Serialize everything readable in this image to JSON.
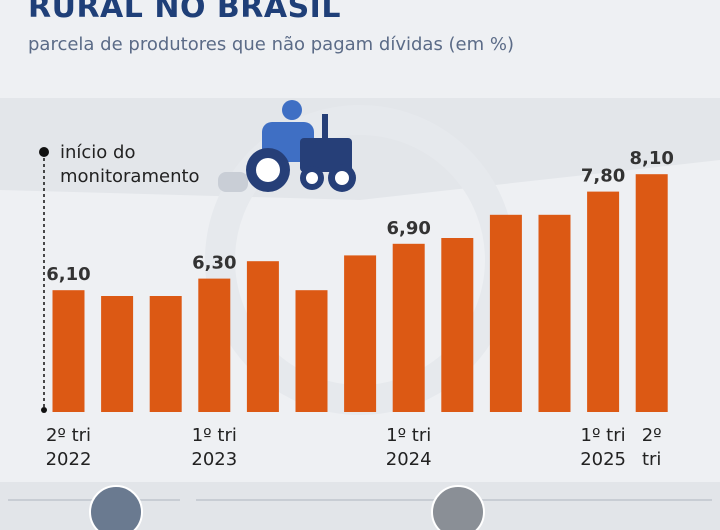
{
  "chart_data": {
    "type": "bar",
    "title": "RURAL NO BRASIL",
    "subtitle": "parcela de produtores que não pagam dívidas (em %)",
    "annotation": "início do\nmonitoramento",
    "categories": [
      "2º tri\n2022",
      null,
      null,
      "1º tri\n2023",
      null,
      null,
      null,
      "1º tri\n2024",
      null,
      null,
      null,
      "1º tri\n2025",
      "2º\ntri"
    ],
    "values": [
      6.1,
      6.0,
      6.0,
      6.3,
      6.6,
      6.1,
      6.7,
      6.9,
      7.0,
      7.4,
      7.4,
      7.8,
      8.1
    ],
    "value_labels": [
      "6,10",
      null,
      null,
      "6,30",
      null,
      null,
      null,
      "6,90",
      null,
      null,
      null,
      "7,80",
      "8,10"
    ],
    "color": "#dc5914",
    "ylim": [
      4.0,
      8.5
    ],
    "grid": false
  }
}
